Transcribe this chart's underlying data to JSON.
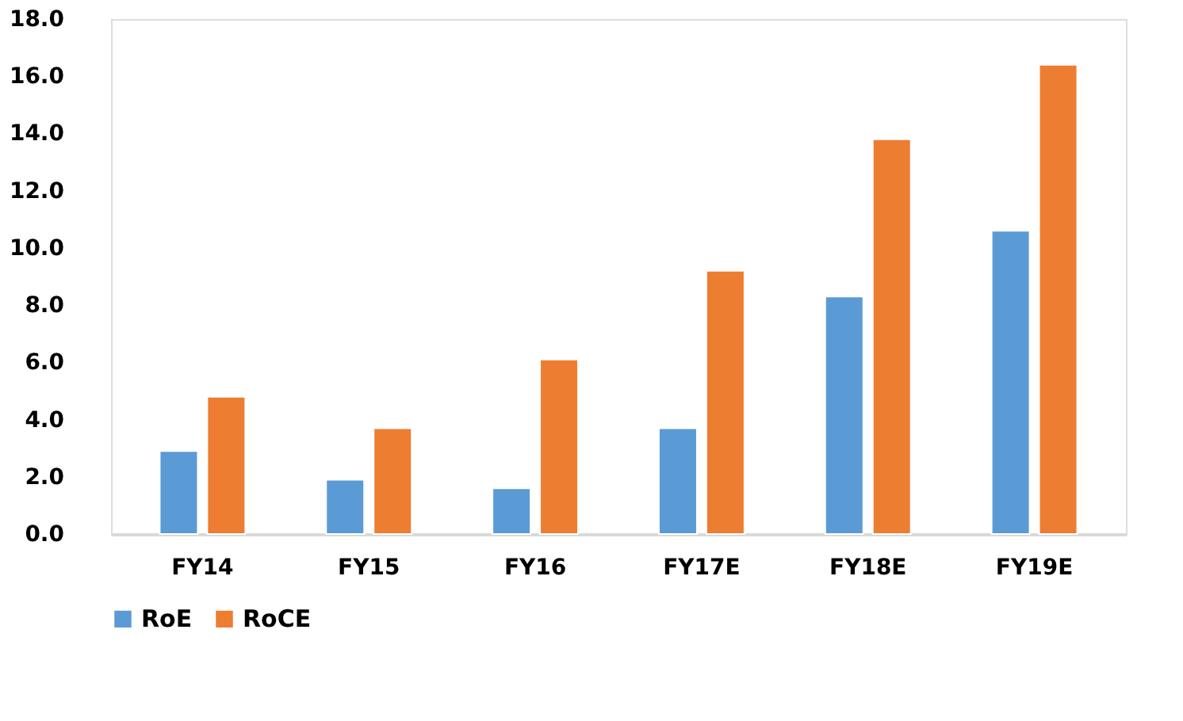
{
  "chart_data": {
    "type": "bar",
    "categories": [
      "FY14",
      "FY15",
      "FY16",
      "FY17E",
      "FY18E",
      "FY19E"
    ],
    "series": [
      {
        "name": "RoE",
        "color": "#5b9bd5",
        "values": [
          2.9,
          1.9,
          1.6,
          3.7,
          8.3,
          10.6
        ]
      },
      {
        "name": "RoCE",
        "color": "#ed7d31",
        "values": [
          4.8,
          3.7,
          6.1,
          9.2,
          13.8,
          16.4
        ]
      }
    ],
    "ylim": [
      0,
      18
    ],
    "yticks": [
      {
        "value": 0,
        "label": "0.0"
      },
      {
        "value": 2,
        "label": "2.0"
      },
      {
        "value": 4,
        "label": "4.0"
      },
      {
        "value": 6,
        "label": "6.0"
      },
      {
        "value": 8,
        "label": "8.0"
      },
      {
        "value": 10,
        "label": "10.0"
      },
      {
        "value": 12,
        "label": "12.0"
      },
      {
        "value": 14,
        "label": "14.0"
      },
      {
        "value": 16,
        "label": "16.0"
      },
      {
        "value": 18,
        "label": "18.0"
      }
    ],
    "grid": false,
    "legend": "bottom"
  }
}
